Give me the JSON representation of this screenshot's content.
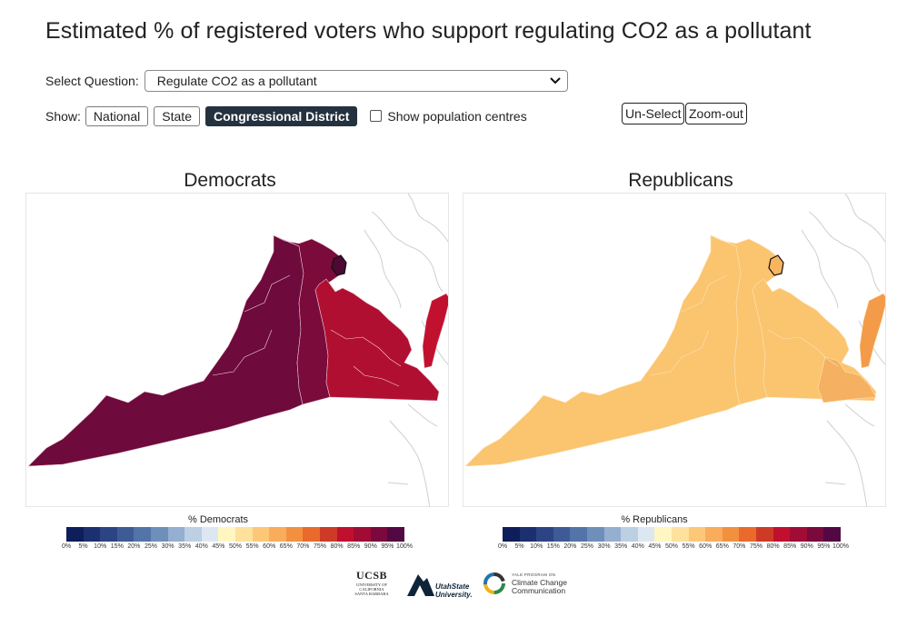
{
  "page": {
    "title": "Estimated % of registered voters who support regulating CO2 as a pollutant"
  },
  "controls": {
    "question_label": "Select Question:",
    "question_value": "Regulate CO2 as a pollutant",
    "show_label": "Show:",
    "show_options": [
      "National",
      "State",
      "Congressional District"
    ],
    "show_selected": "Congressional District",
    "population_centres_label": "Show population centres",
    "population_centres_checked": false,
    "unselect_label": "Un-Select",
    "zoomout_label": "Zoom-out"
  },
  "maps": [
    {
      "title": "Democrats",
      "legend_title": "% Democrats",
      "region": "Virginia",
      "district_fills": {
        "western": "#6e0a3c",
        "northern": "#7a0b3b",
        "eastern": "#b10f32",
        "shore": "#c2102f"
      }
    },
    {
      "title": "Republicans",
      "legend_title": "% Republicans",
      "region": "Virginia",
      "district_fills": {
        "western": "#fbc46f",
        "northern": "#fbc46f",
        "eastern": "#f6b061",
        "shore": "#f39b49"
      }
    }
  ],
  "legend": {
    "colors": [
      "#0d1e5a",
      "#1c2f6f",
      "#2d4484",
      "#3e5b96",
      "#5274a8",
      "#6f8fbb",
      "#94afd0",
      "#bccfe3",
      "#dde7f1",
      "#fff6c2",
      "#fde19c",
      "#fcc878",
      "#f9ac5c",
      "#f39040",
      "#e96a2b",
      "#cd3b26",
      "#c1102f",
      "#a00c36",
      "#7a093e",
      "#540843"
    ],
    "ticks": [
      "0%",
      "5%",
      "10%",
      "15%",
      "20%",
      "25%",
      "30%",
      "35%",
      "40%",
      "45%",
      "50%",
      "55%",
      "60%",
      "65%",
      "70%",
      "75%",
      "80%",
      "85%",
      "90%",
      "95%",
      "100%"
    ]
  },
  "logos": {
    "ucsb": "UCSB",
    "ucsb_sub1": "UNIVERSITY OF CALIFORNIA",
    "ucsb_sub2": "SANTA BARBARA",
    "usu_1": "UtahState",
    "usu_2": "University.",
    "yale_tag": "YALE PROGRAM ON",
    "yale_1": "Climate Change",
    "yale_2": "Communication"
  }
}
